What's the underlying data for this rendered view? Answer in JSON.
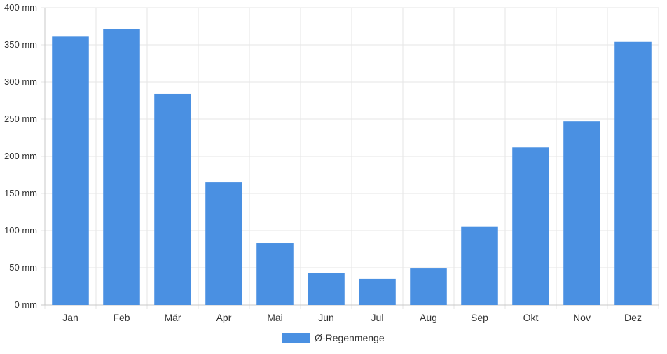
{
  "chart_data": {
    "type": "bar",
    "categories": [
      "Jan",
      "Feb",
      "Mär",
      "Apr",
      "Mai",
      "Jun",
      "Jul",
      "Aug",
      "Sep",
      "Okt",
      "Nov",
      "Dez"
    ],
    "series": [
      {
        "name": "Ø-Regenmenge",
        "values": [
          361,
          371,
          284,
          165,
          83,
          43,
          35,
          49,
          105,
          212,
          247,
          354
        ]
      }
    ],
    "ylim": [
      0,
      400
    ],
    "yticks": [
      0,
      50,
      100,
      150,
      200,
      250,
      300,
      350,
      400
    ],
    "ytick_labels": [
      "0 mm",
      "50 mm",
      "100 mm",
      "150 mm",
      "200 mm",
      "250 mm",
      "300 mm",
      "350 mm",
      "400 mm"
    ],
    "grid": true,
    "legend_placement": "bottom-center",
    "colors": {
      "bar": "#4a90e2",
      "grid": "#e6e6e6",
      "axis": "#c8c8c8"
    }
  }
}
